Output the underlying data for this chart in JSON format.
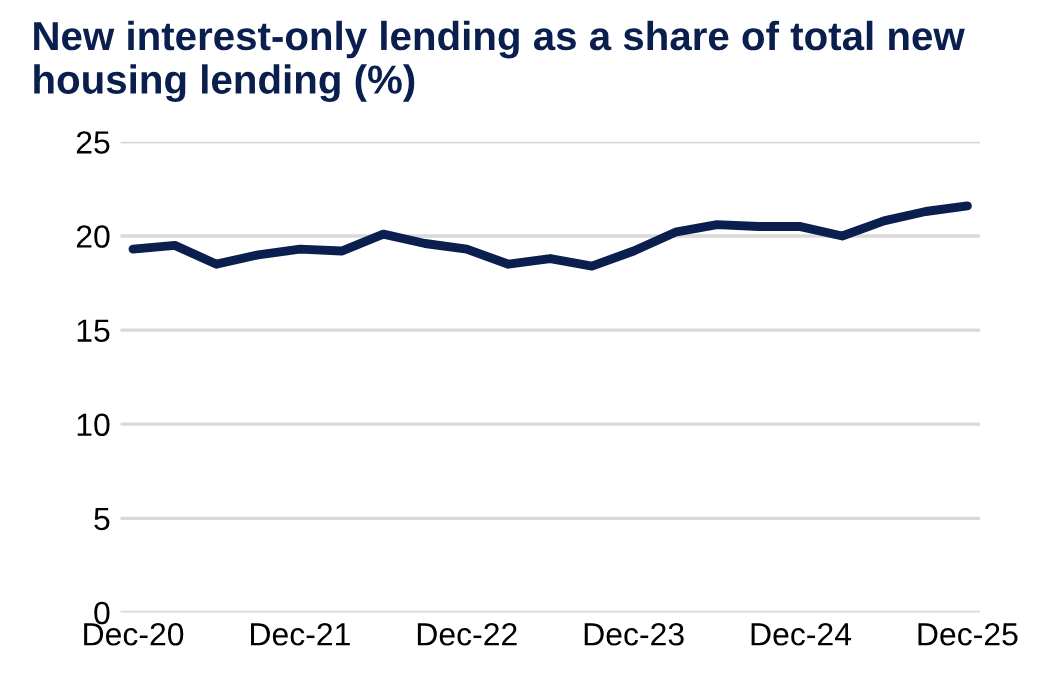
{
  "chart_data": {
    "type": "line",
    "title": "New interest-only lending as a share of total new housing lending (%)",
    "categories": [
      "Dec-20",
      null,
      null,
      null,
      "Dec-21",
      null,
      null,
      null,
      "Dec-22",
      null,
      null,
      null,
      "Dec-23",
      null,
      null,
      null,
      "Dec-24",
      null,
      null,
      null,
      "Dec-25"
    ],
    "series": [
      {
        "color": "#0b1f4f",
        "values": [
          19.3,
          19.5,
          18.5,
          19.0,
          19.3,
          19.2,
          20.1,
          19.6,
          19.3,
          18.5,
          18.8,
          18.4,
          19.2,
          20.2,
          20.6,
          20.5,
          20.5,
          20.0,
          20.8,
          21.3,
          21.6
        ]
      }
    ],
    "ylim": [
      0,
      25
    ],
    "yticks": [
      0,
      5,
      10,
      15,
      20,
      25
    ],
    "grid": "y",
    "legend": false,
    "line_style": "solid",
    "marker": "none"
  }
}
